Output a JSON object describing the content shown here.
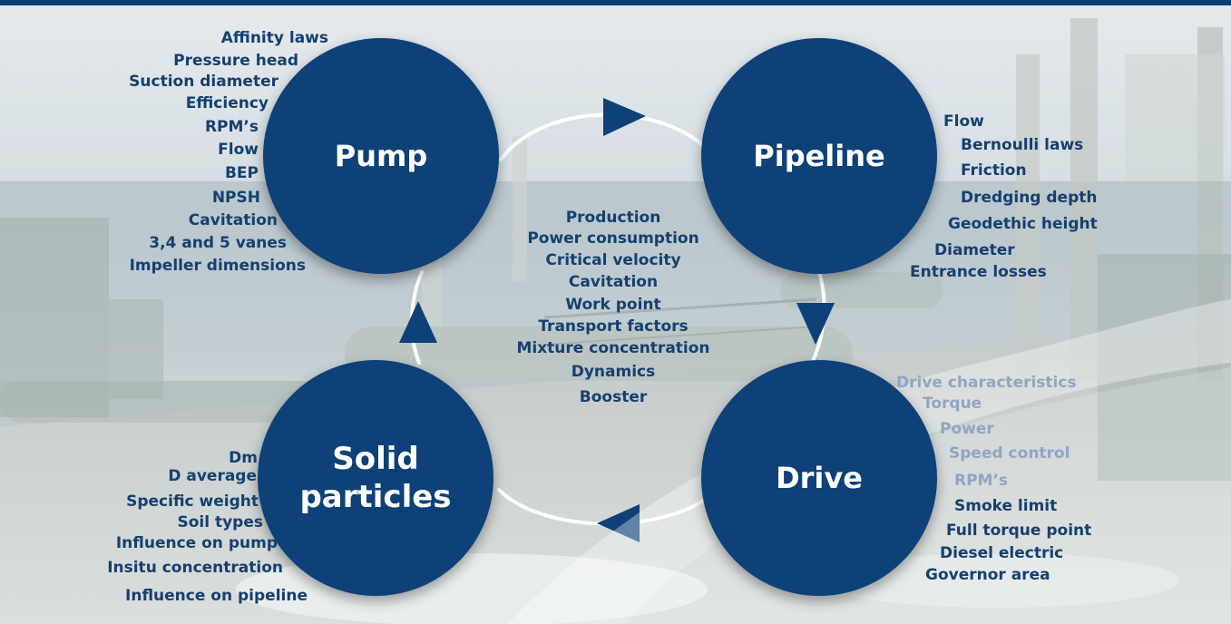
{
  "header_color": "#0b3e75",
  "circle_color": "#0d4177",
  "text_color": "#15406f",
  "pump": {
    "title": "Pump",
    "items": [
      "Affinity laws",
      "Pressure head",
      "Suction diameter",
      "Efficiency",
      "RPM’s",
      "Flow",
      "BEP",
      "NPSH",
      "Cavitation",
      "3,4 and 5 vanes",
      "Impeller dimensions"
    ]
  },
  "pipeline": {
    "title": "Pipeline",
    "items": [
      "Flow",
      "Bernoulli laws",
      "Friction",
      "Dredging depth",
      "Geodethic height",
      "Diameter",
      "Entrance losses"
    ]
  },
  "center": {
    "items": [
      "Production",
      "Power consumption",
      "Critical velocity",
      "Cavitation",
      "Work point",
      "Transport factors",
      "Mixture concentration",
      "Dynamics",
      "Booster"
    ]
  },
  "solid": {
    "title_line1": "Solid",
    "title_line2": "particles",
    "items": [
      "Dm",
      "D average",
      "Specific weight",
      "Soil types",
      "Influence on pump",
      "Insitu concentration",
      "Influence on pipeline"
    ]
  },
  "drive": {
    "title": "Drive",
    "items": [
      "Drive characteristics",
      "Torque",
      "Power",
      "Speed control",
      "RPM’s",
      "Smoke limit",
      "Full torque point",
      "Diesel electric",
      "Governor area"
    ]
  }
}
